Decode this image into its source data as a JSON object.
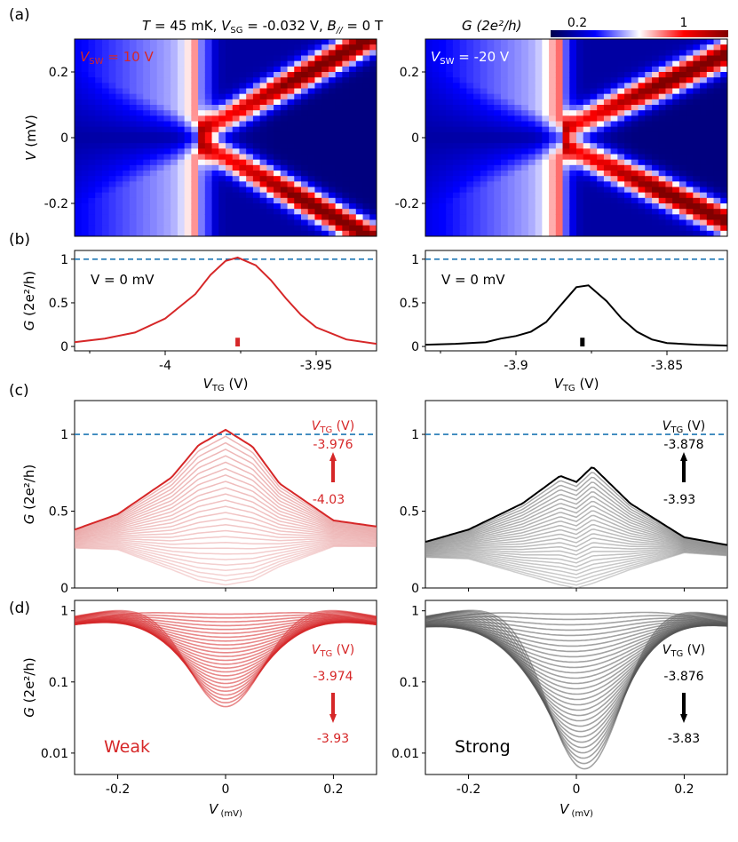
{
  "header": {
    "title_parts": [
      "T",
      " = 45 mK,  ",
      "V",
      "SG",
      " = -0.032 V,  ",
      "B",
      "//",
      "  = 0 T"
    ],
    "colorbar_label": "G (2e²/h)",
    "colorbar_ticks": [
      "0.2",
      "1"
    ]
  },
  "panel_letters": [
    "(a)",
    "(b)",
    "(c)",
    "(d)"
  ],
  "colors": {
    "red": "#d62728",
    "black": "#000000",
    "dashed": "#1f77b4",
    "gray": "#808080",
    "pink": "#f0a0a0"
  },
  "chart_data": [
    {
      "id": "a-left",
      "type": "heatmap",
      "annotation": [
        "V",
        "SW",
        " = 10 V"
      ],
      "ylabel": "V (mV)",
      "ylim": [
        -0.3,
        0.3
      ],
      "yticks": [
        "0.2",
        "0",
        "-0.2"
      ],
      "x_range_vtg": [
        -4.03,
        -3.93
      ],
      "colorscale": "seismic, G from 0.1 to 1.2 (2e²/h)"
    },
    {
      "id": "a-right",
      "type": "heatmap",
      "annotation": [
        "V",
        "SW",
        " = -20 V"
      ],
      "ylim": [
        -0.3,
        0.3
      ],
      "yticks": [
        "0.2",
        "0",
        "-0.2"
      ],
      "x_range_vtg": [
        -3.93,
        -3.83
      ],
      "colorscale": "seismic, G from 0.1 to 1.2 (2e²/h)"
    },
    {
      "id": "b-left",
      "type": "line",
      "annotation": "V = 0 mV",
      "ylabel": "G (2e²/h)",
      "xlabel": "VTG (V)",
      "xlim": [
        -4.03,
        -3.93
      ],
      "ylim": [
        -0.05,
        1.1
      ],
      "xticks": [
        "-4",
        "-3.95"
      ],
      "yticks": [
        "0",
        "0.5",
        "1"
      ],
      "reference_line": 1,
      "marker_x": -3.976,
      "x": [
        -4.03,
        -4.02,
        -4.01,
        -4.0,
        -3.99,
        -3.985,
        -3.98,
        -3.976,
        -3.97,
        -3.965,
        -3.96,
        -3.955,
        -3.95,
        -3.94,
        -3.93
      ],
      "y": [
        0.05,
        0.09,
        0.16,
        0.32,
        0.6,
        0.82,
        0.98,
        1.02,
        0.93,
        0.76,
        0.55,
        0.36,
        0.22,
        0.08,
        0.03
      ]
    },
    {
      "id": "b-right",
      "type": "line",
      "annotation": "V = 0 mV",
      "xlabel": "VTG (V)",
      "xlim": [
        -3.93,
        -3.83
      ],
      "ylim": [
        -0.05,
        1.1
      ],
      "xticks": [
        "-3.9",
        "-3.85"
      ],
      "yticks": [
        "0",
        "0.5",
        "1"
      ],
      "reference_line": 1,
      "marker_x": -3.878,
      "x": [
        -3.93,
        -3.92,
        -3.91,
        -3.905,
        -3.9,
        -3.895,
        -3.89,
        -3.885,
        -3.88,
        -3.876,
        -3.87,
        -3.865,
        -3.86,
        -3.855,
        -3.85,
        -3.84,
        -3.83
      ],
      "y": [
        0.02,
        0.03,
        0.05,
        0.09,
        0.12,
        0.17,
        0.28,
        0.48,
        0.68,
        0.7,
        0.52,
        0.32,
        0.17,
        0.08,
        0.04,
        0.02,
        0.01
      ]
    },
    {
      "id": "c-left",
      "type": "line",
      "ylabel": "G (2e²/h)",
      "xlim": [
        -0.28,
        0.28
      ],
      "ylim": [
        0,
        1.22
      ],
      "yticks": [
        "0",
        "0.5",
        "1"
      ],
      "reference_line": 1,
      "legend_title": [
        "V",
        "TG",
        " (V)"
      ],
      "arrow_top": "-3.976",
      "arrow_bottom": "-4.03",
      "series_count": 27,
      "top_curve": {
        "x": [
          -0.28,
          -0.2,
          -0.1,
          -0.05,
          0,
          0.05,
          0.1,
          0.2,
          0.28
        ],
        "y": [
          0.38,
          0.48,
          0.72,
          0.93,
          1.03,
          0.92,
          0.68,
          0.44,
          0.4
        ]
      },
      "bottom_curve": {
        "x": [
          -0.28,
          -0.2,
          -0.1,
          -0.05,
          0,
          0.05,
          0.1,
          0.2,
          0.28
        ],
        "y": [
          0.26,
          0.25,
          0.12,
          0.05,
          0.02,
          0.05,
          0.14,
          0.27,
          0.27
        ]
      }
    },
    {
      "id": "c-right",
      "type": "line",
      "xlim": [
        -0.28,
        0.28
      ],
      "ylim": [
        0,
        1.22
      ],
      "yticks": [
        "0",
        "0.5",
        "1"
      ],
      "reference_line": 1,
      "legend_title": [
        "V",
        "TG",
        " (V)"
      ],
      "arrow_top": "-3.878",
      "arrow_bottom": "-3.93",
      "series_count": 27,
      "top_curve": {
        "x": [
          -0.28,
          -0.2,
          -0.1,
          -0.03,
          0,
          0.03,
          0.1,
          0.2,
          0.28
        ],
        "y": [
          0.3,
          0.38,
          0.55,
          0.73,
          0.69,
          0.79,
          0.55,
          0.33,
          0.28
        ]
      },
      "bottom_curve": {
        "x": [
          -0.28,
          -0.2,
          -0.1,
          -0.03,
          0,
          0.03,
          0.1,
          0.2,
          0.28
        ],
        "y": [
          0.2,
          0.19,
          0.09,
          0.02,
          0.0,
          0.03,
          0.12,
          0.23,
          0.21
        ]
      }
    },
    {
      "id": "d-left",
      "type": "line",
      "ylabel": "G (2e²/h)",
      "xlabel": "V (mV)",
      "xlim": [
        -0.28,
        0.28
      ],
      "ylim": [
        0.005,
        1.4
      ],
      "log_y": true,
      "xticks": [
        "-0.2",
        "0",
        "0.2"
      ],
      "yticks": [
        "0.01",
        "0.1",
        "1"
      ],
      "legend_title": [
        "V",
        "TG",
        " (V)"
      ],
      "arrow_top": "-3.974",
      "arrow_bottom": "-3.93",
      "label": "Weak",
      "series_count": 25,
      "min_curve_center": 0.045
    },
    {
      "id": "d-right",
      "type": "line",
      "xlabel": "V (mV)",
      "xlim": [
        -0.28,
        0.28
      ],
      "ylim": [
        0.005,
        1.4
      ],
      "log_y": true,
      "xticks": [
        "-0.2",
        "0",
        "0.2"
      ],
      "yticks": [
        "0.01",
        "0.1",
        "1"
      ],
      "legend_title": [
        "V",
        "TG",
        " (V)"
      ],
      "arrow_top": "-3.876",
      "arrow_bottom": "-3.83",
      "label": "Strong",
      "series_count": 30,
      "min_curve_center": 0.006
    }
  ],
  "xlabels": {
    "vtg": [
      "V",
      "TG",
      " (V)"
    ],
    "v": [
      "V",
      " (mV)"
    ]
  }
}
